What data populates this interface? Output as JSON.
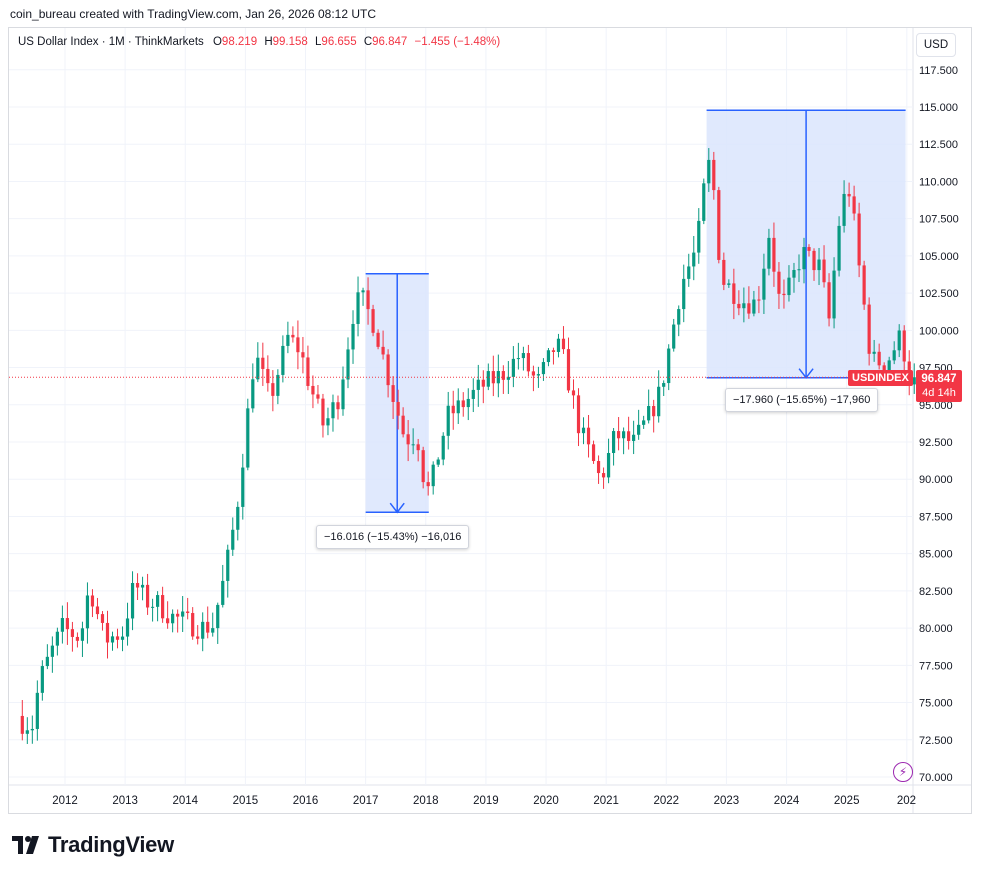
{
  "header": {
    "attribution": "coin_bureau created with TradingView.com, Jan 26, 2026 08:12 UTC"
  },
  "legend": {
    "symbol": "US Dollar Index · 1M · ThinkMarkets",
    "o_label": "O",
    "o": "98.219",
    "h_label": "H",
    "h": "99.158",
    "l_label": "L",
    "l": "96.655",
    "c_label": "C",
    "c": "96.847",
    "change": "−1.455 (−1.48%)"
  },
  "currency_button": "USD",
  "last_price": {
    "symbol": "USDINDEX",
    "price": "96.847",
    "countdown": "4d 14h",
    "value": 96.847
  },
  "measure_1": {
    "label": "−16.016 (−15.43%) −16,016"
  },
  "measure_2": {
    "label": "−17.960 (−15.65%) −17,960"
  },
  "logo": {
    "text": "TradingView"
  },
  "colors": {
    "up": "#089981",
    "down": "#f23645",
    "measure": "#2962ff",
    "measure_fill": "#dbe5fd",
    "grid": "#f0f3fa"
  },
  "chart_data": {
    "type": "candlestick",
    "title": "US Dollar Index · 1M · ThinkMarkets",
    "interval": "1M",
    "x_ticks": [
      "2012",
      "2013",
      "2014",
      "2015",
      "2016",
      "2017",
      "2018",
      "2019",
      "2020",
      "2021",
      "2022",
      "2023",
      "2024",
      "2025",
      "202"
    ],
    "y_ticks": [
      "117.500",
      "115.000",
      "112.500",
      "110.000",
      "107.500",
      "105.000",
      "102.500",
      "100.000",
      "97.500",
      "95.000",
      "92.500",
      "90.000",
      "87.500",
      "85.000",
      "82.500",
      "80.000",
      "77.500",
      "75.000",
      "72.500",
      "70.000"
    ],
    "ylim": [
      69.5,
      118.5
    ],
    "xlim": [
      2011.25,
      2026.15
    ],
    "grid": true,
    "anchors": [
      [
        2011.25,
        73.8
      ],
      [
        2011.5,
        73.5
      ],
      [
        2011.62,
        76.5
      ],
      [
        2011.83,
        78.5
      ],
      [
        2012.0,
        80.0
      ],
      [
        2012.3,
        79.3
      ],
      [
        2012.45,
        82.9
      ],
      [
        2012.7,
        79.2
      ],
      [
        2013.0,
        79.7
      ],
      [
        2013.2,
        83.0
      ],
      [
        2013.4,
        81.8
      ],
      [
        2013.6,
        81.6
      ],
      [
        2013.8,
        80.8
      ],
      [
        2014.0,
        80.5
      ],
      [
        2014.3,
        80.0
      ],
      [
        2014.5,
        80.2
      ],
      [
        2014.7,
        83.5
      ],
      [
        2014.9,
        88.0
      ],
      [
        2015.2,
        98.5
      ],
      [
        2015.45,
        95.3
      ],
      [
        2015.75,
        99.5
      ],
      [
        2015.95,
        98.7
      ],
      [
        2016.1,
        96.5
      ],
      [
        2016.35,
        93.5
      ],
      [
        2016.6,
        95.6
      ],
      [
        2016.85,
        101.5
      ],
      [
        2016.97,
        102.2
      ],
      [
        2017.2,
        100.3
      ],
      [
        2017.5,
        95.6
      ],
      [
        2017.7,
        92.7
      ],
      [
        2017.9,
        93.0
      ],
      [
        2018.05,
        89.0
      ],
      [
        2018.15,
        89.9
      ],
      [
        2018.4,
        94.2
      ],
      [
        2018.7,
        95.2
      ],
      [
        2018.95,
        96.2
      ],
      [
        2019.3,
        97.0
      ],
      [
        2019.6,
        98.3
      ],
      [
        2019.9,
        96.4
      ],
      [
        2020.2,
        99.0
      ],
      [
        2020.3,
        98.6
      ],
      [
        2020.6,
        93.4
      ],
      [
        2020.95,
        89.9
      ],
      [
        2021.2,
        93.0
      ],
      [
        2021.5,
        92.4
      ],
      [
        2021.75,
        94.2
      ],
      [
        2021.95,
        95.9
      ],
      [
        2022.3,
        103.2
      ],
      [
        2022.55,
        105.5
      ],
      [
        2022.73,
        111.5
      ],
      [
        2022.85,
        109.0
      ],
      [
        2022.95,
        103.5
      ],
      [
        2023.3,
        102.0
      ],
      [
        2023.55,
        101.8
      ],
      [
        2023.75,
        106.5
      ],
      [
        2023.95,
        101.3
      ],
      [
        2024.3,
        105.2
      ],
      [
        2024.6,
        104.2
      ],
      [
        2024.75,
        100.7
      ],
      [
        2024.95,
        108.5
      ],
      [
        2025.1,
        109.5
      ],
      [
        2025.25,
        104.2
      ],
      [
        2025.45,
        98.0
      ],
      [
        2025.7,
        97.8
      ],
      [
        2025.95,
        99.7
      ],
      [
        2026.07,
        96.85
      ]
    ],
    "annotations": [
      {
        "type": "measure",
        "from": [
          2017.0,
          103.8
        ],
        "to": [
          2018.05,
          87.784
        ],
        "label": "−16.016 (−15.43%) −16,016"
      },
      {
        "type": "measure",
        "from": [
          2022.67,
          114.778
        ],
        "to": [
          2025.98,
          96.818
        ],
        "label": "−17.960 (−15.65%) −17,960"
      }
    ]
  }
}
